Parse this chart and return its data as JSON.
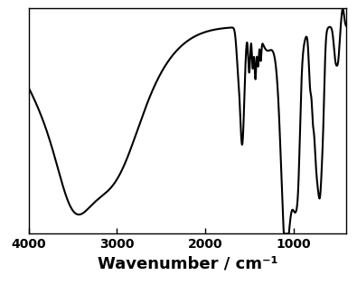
{
  "xlabel": "Wavenumber / cm⁻¹",
  "xlim": [
    4000,
    400
  ],
  "ylim": [
    0,
    1
  ],
  "xticks": [
    4000,
    3000,
    2000,
    1000
  ],
  "xtick_labels": [
    "4000",
    "3000",
    "2000",
    "1000"
  ],
  "line_color": "#000000",
  "line_width": 1.5,
  "background_color": "#ffffff",
  "xlabel_fontsize": 13,
  "xlabel_fontweight": "bold",
  "tick_fontsize": 10,
  "tick_fontweight": "bold"
}
